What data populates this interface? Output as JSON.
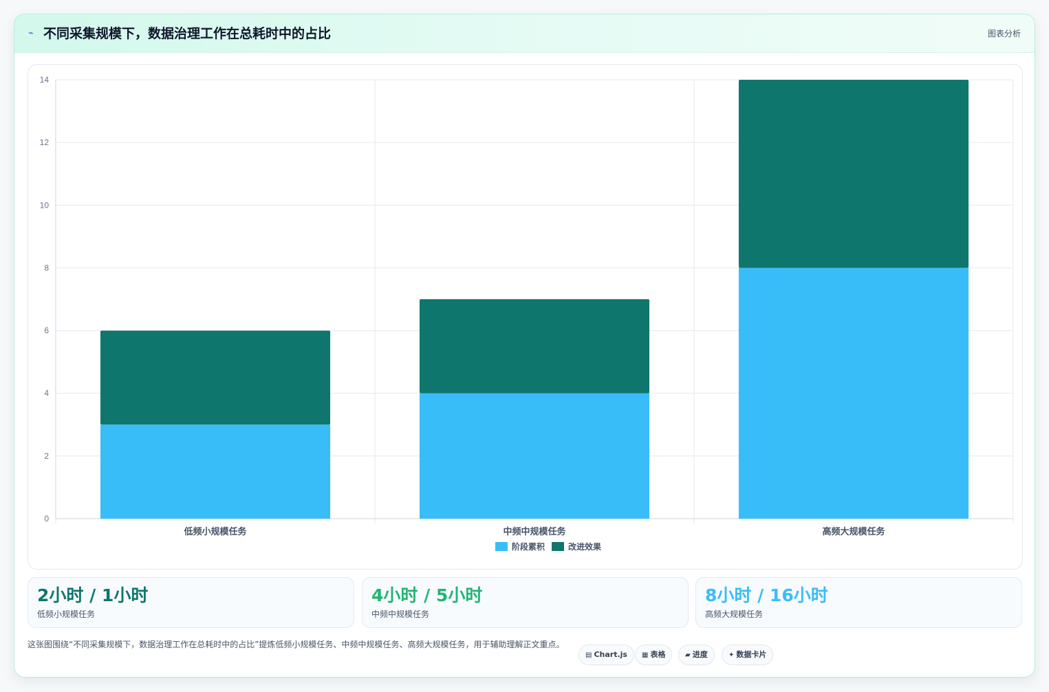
{
  "header": {
    "icon": "chart-spark-icon",
    "title": "不同采集规模下，数据治理工作在总耗时中的占比",
    "tag": "图表分析"
  },
  "chart_data": {
    "type": "bar",
    "stacked": true,
    "categories": [
      "低频小规模任务",
      "中频中规模任务",
      "高频大规模任务"
    ],
    "series": [
      {
        "name": "阶段累积",
        "values": [
          3,
          4,
          8
        ],
        "color": "#38bdf8"
      },
      {
        "name": "改进效果",
        "values": [
          3,
          3,
          6
        ],
        "color": "#0f766e"
      }
    ],
    "ylim": [
      0,
      14
    ],
    "yticks": [
      0,
      2,
      4,
      6,
      8,
      10,
      12,
      14
    ],
    "grid": true,
    "legend": "bottom-center"
  },
  "stats": [
    {
      "value": "2小时 / 1小时",
      "label": "低频小规模任务",
      "color": "#0f766e"
    },
    {
      "value": "4小时 / 5小时",
      "label": "中频中规模任务",
      "color": "#22b573"
    },
    {
      "value": "8小时 / 16小时",
      "label": "高频大规模任务",
      "color": "#38bdf8"
    }
  ],
  "footer": {
    "description": "这张图围绕“不同采集规模下，数据治理工作在总耗时中的占比”提炼低频小规模任务、中频中规模任务、高频大规模任务，用于辅助理解正文重点。",
    "chips": [
      {
        "icon": "chart-icon",
        "glyph": "▤",
        "label": "Chart.js"
      },
      {
        "icon": "table-icon",
        "glyph": "▦",
        "label": "表格"
      },
      {
        "icon": "progress-icon",
        "glyph": "▰",
        "label": "进度"
      },
      {
        "icon": "sparkle-icon",
        "glyph": "✦",
        "label": "数据卡片"
      }
    ]
  }
}
